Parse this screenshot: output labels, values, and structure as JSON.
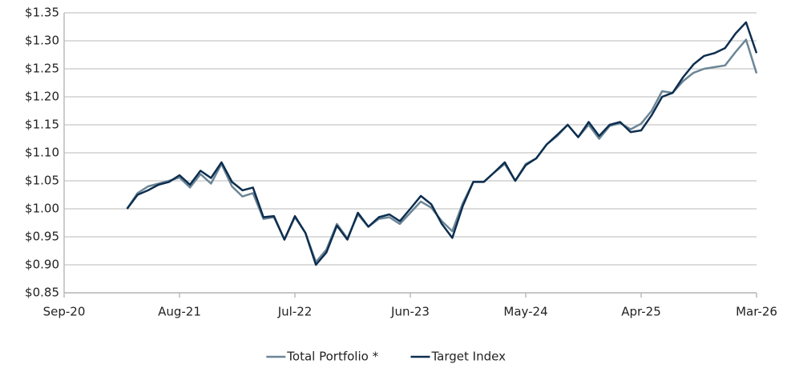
{
  "chart_data": {
    "type": "line",
    "x": [
      "Mar-21",
      "Apr-21",
      "May-21",
      "Jun-21",
      "Jul-21",
      "Aug-21",
      "Sep-21",
      "Oct-21",
      "Nov-21",
      "Dec-21",
      "Jan-22",
      "Feb-22",
      "Mar-22",
      "Apr-22",
      "May-22",
      "Jun-22",
      "Jul-22",
      "Aug-22",
      "Sep-22",
      "Oct-22",
      "Nov-22",
      "Dec-22",
      "Jan-23",
      "Feb-23",
      "Mar-23",
      "Apr-23",
      "May-23",
      "Jun-23",
      "Jul-23",
      "Aug-23",
      "Sep-23",
      "Oct-23",
      "Nov-23",
      "Dec-23",
      "Jan-24",
      "Feb-24",
      "Mar-24",
      "Apr-24",
      "May-24",
      "Jun-24",
      "Jul-24",
      "Aug-24",
      "Sep-24",
      "Oct-24",
      "Nov-24",
      "Dec-24",
      "Jan-25",
      "Feb-25",
      "Mar-25",
      "Apr-25",
      "May-25",
      "Jun-25",
      "Jul-25",
      "Aug-25",
      "Sep-25",
      "Oct-25",
      "Nov-25",
      "Dec-25",
      "Jan-26",
      "Feb-26",
      "Mar-26"
    ],
    "series": [
      {
        "name": "Total Portfolio *",
        "color": "#6b8596",
        "values": [
          1.0,
          1.028,
          1.04,
          1.045,
          1.05,
          1.056,
          1.038,
          1.062,
          1.045,
          1.08,
          1.04,
          1.022,
          1.028,
          0.982,
          0.985,
          0.945,
          0.985,
          0.957,
          0.905,
          0.927,
          0.973,
          0.947,
          0.99,
          0.968,
          0.982,
          0.985,
          0.973,
          0.993,
          1.013,
          1.002,
          0.978,
          0.96,
          1.01,
          1.048,
          1.048,
          1.065,
          1.08,
          1.05,
          1.08,
          1.09,
          1.115,
          1.13,
          1.15,
          1.128,
          1.15,
          1.125,
          1.148,
          1.153,
          1.142,
          1.152,
          1.175,
          1.21,
          1.207,
          1.228,
          1.243,
          1.25,
          1.253,
          1.256,
          1.28,
          1.302,
          1.242
        ]
      },
      {
        "name": "Target Index",
        "color": "#0d2e4f",
        "values": [
          1.0,
          1.025,
          1.033,
          1.043,
          1.048,
          1.06,
          1.043,
          1.068,
          1.055,
          1.083,
          1.048,
          1.033,
          1.038,
          0.985,
          0.987,
          0.945,
          0.987,
          0.957,
          0.9,
          0.922,
          0.97,
          0.945,
          0.993,
          0.968,
          0.985,
          0.99,
          0.978,
          1.0,
          1.023,
          1.008,
          0.973,
          0.948,
          1.005,
          1.048,
          1.048,
          1.065,
          1.083,
          1.05,
          1.078,
          1.09,
          1.115,
          1.132,
          1.15,
          1.128,
          1.155,
          1.13,
          1.15,
          1.155,
          1.137,
          1.14,
          1.167,
          1.2,
          1.207,
          1.235,
          1.258,
          1.273,
          1.278,
          1.287,
          1.313,
          1.333,
          1.278
        ]
      }
    ],
    "xticks": [
      "Sep-20",
      "Aug-21",
      "Jul-22",
      "Jun-23",
      "May-24",
      "Apr-25",
      "Mar-26"
    ],
    "ylim": [
      0.85,
      1.35
    ],
    "yticks": [
      {
        "value": 0.85,
        "label": "$0.85"
      },
      {
        "value": 0.9,
        "label": "$0.90"
      },
      {
        "value": 0.95,
        "label": "$0.95"
      },
      {
        "value": 1.0,
        "label": "$1.00"
      },
      {
        "value": 1.05,
        "label": "$1.05"
      },
      {
        "value": 1.1,
        "label": "$1.10"
      },
      {
        "value": 1.15,
        "label": "$1.15"
      },
      {
        "value": 1.2,
        "label": "$1.20"
      },
      {
        "value": 1.25,
        "label": "$1.25"
      },
      {
        "value": 1.3,
        "label": "$1.30"
      },
      {
        "value": 1.35,
        "label": "$1.35"
      }
    ],
    "grid": true,
    "legend": "bottom"
  }
}
